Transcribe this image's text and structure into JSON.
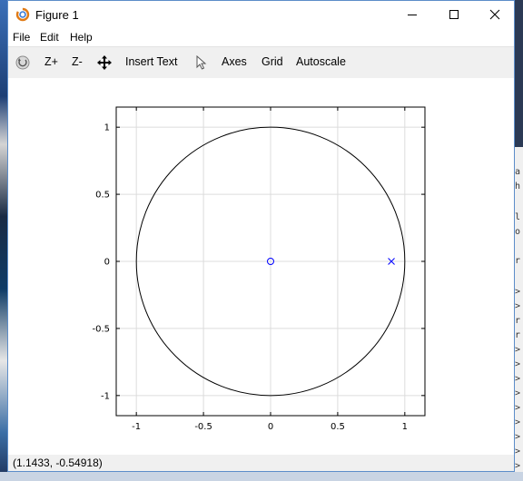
{
  "window": {
    "title": "Figure 1"
  },
  "menu": [
    "File",
    "Edit",
    "Help"
  ],
  "toolbar": {
    "zoom_in": "Z+",
    "zoom_out": "Z-",
    "insert_text": "Insert Text",
    "axes": "Axes",
    "grid": "Grid",
    "autoscale": "Autoscale",
    "icons": [
      "rotate-icon",
      "pan-icon",
      "select-arrow-icon"
    ]
  },
  "status": {
    "coordinates": "(1.1433, -0.54918)"
  },
  "chart_data": {
    "type": "scatter",
    "xlim": [
      -1.15,
      1.15
    ],
    "ylim": [
      -1.15,
      1.15
    ],
    "x_ticks": [
      -1,
      -0.5,
      0,
      0.5,
      1
    ],
    "x_tick_labels": [
      "-1",
      "-0.5",
      "0",
      "0.5",
      "1"
    ],
    "y_ticks": [
      1,
      0.5,
      0,
      -0.5,
      -1
    ],
    "y_tick_labels": [
      "1",
      "0.5",
      "0",
      "-0.5",
      "-1"
    ],
    "grid": true,
    "series": [
      {
        "kind": "unit-circle",
        "center": [
          0,
          0
        ],
        "radius": 1,
        "color": "#000000"
      },
      {
        "kind": "zero",
        "marker": "o",
        "points": [
          [
            0,
            0
          ]
        ],
        "color": "#0000ff"
      },
      {
        "kind": "pole",
        "marker": "x",
        "points": [
          [
            0.9,
            0
          ]
        ],
        "color": "#0000ff"
      }
    ]
  }
}
